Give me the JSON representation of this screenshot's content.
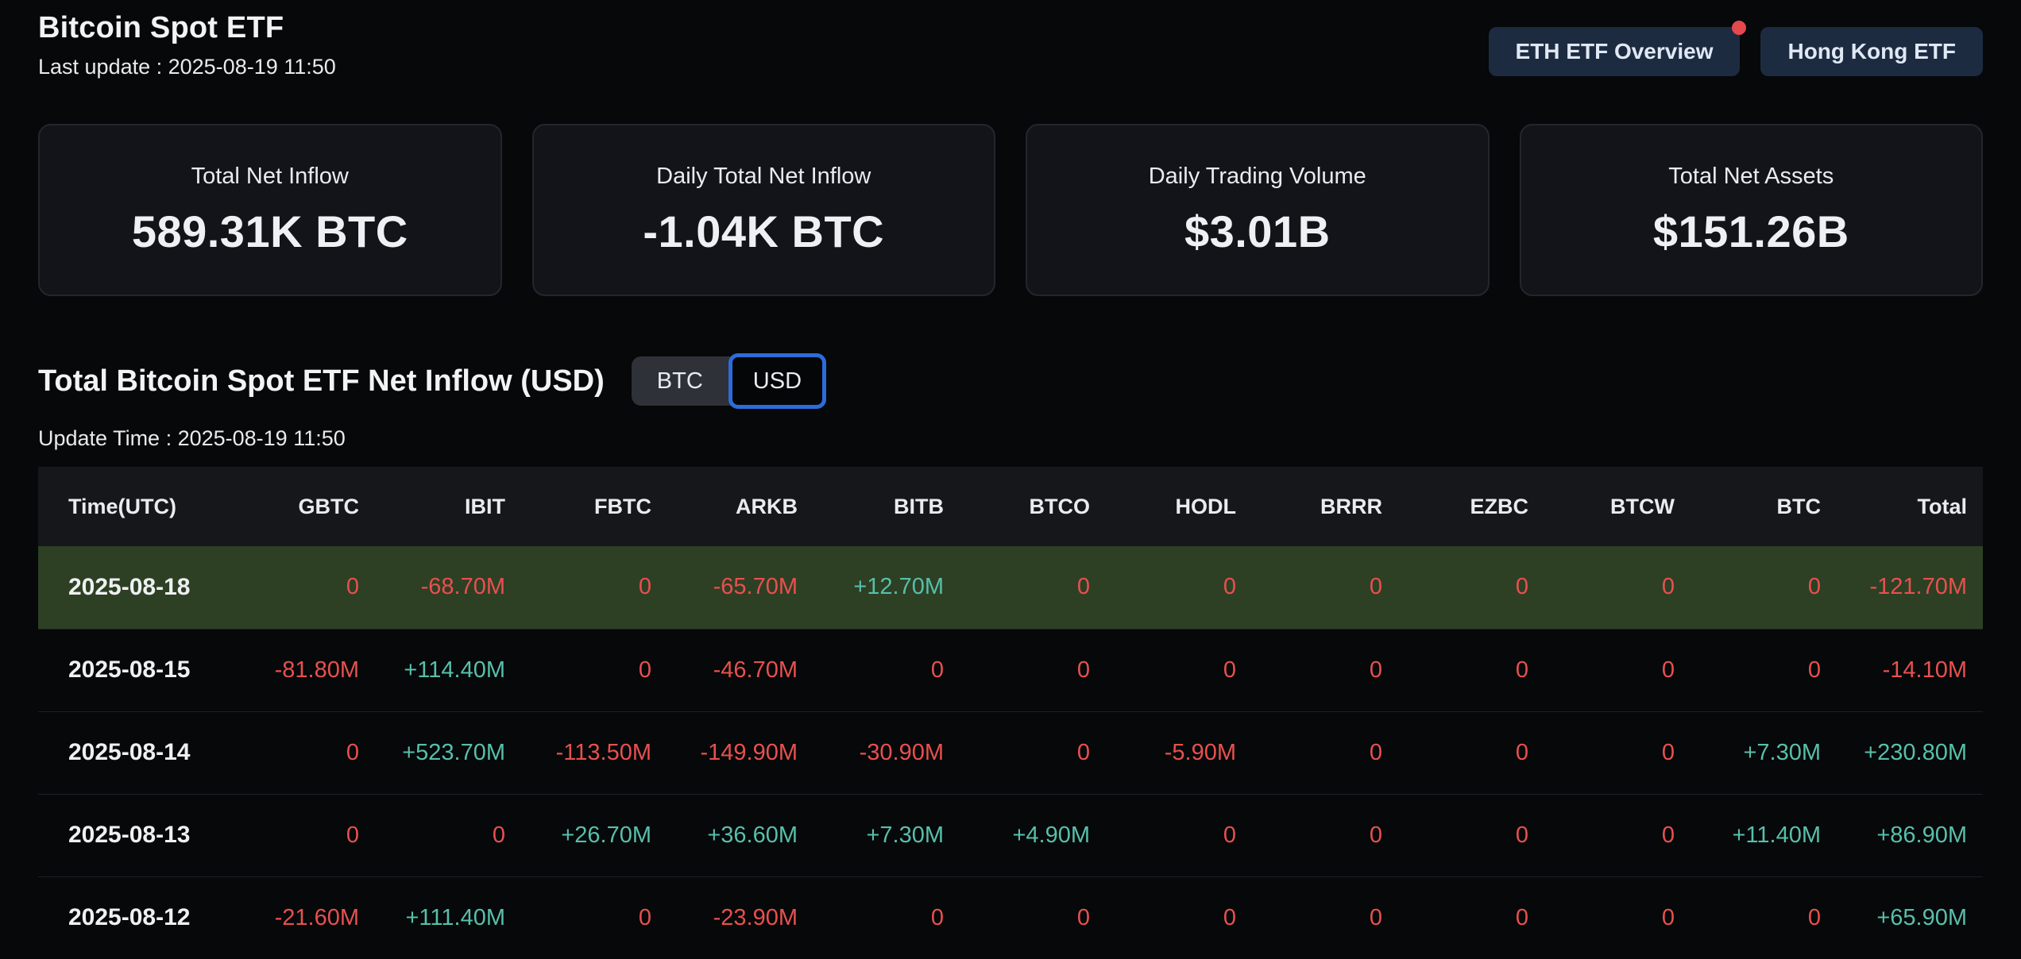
{
  "header": {
    "title": "Bitcoin Spot ETF",
    "last_update": "Last update : 2025-08-19 11:50",
    "buttons": [
      {
        "label": "ETH ETF Overview",
        "has_notification_dot": true
      },
      {
        "label": "Hong Kong ETF",
        "has_notification_dot": false
      }
    ]
  },
  "stats": [
    {
      "label": "Total Net Inflow",
      "value": "589.31K BTC"
    },
    {
      "label": "Daily Total Net Inflow",
      "value": "-1.04K BTC"
    },
    {
      "label": "Daily Trading Volume",
      "value": "$3.01B"
    },
    {
      "label": "Total Net Assets",
      "value": "$151.26B"
    }
  ],
  "inflow_section": {
    "title": "Total Bitcoin Spot ETF Net Inflow (USD)",
    "unit_toggle": {
      "options": [
        "BTC",
        "USD"
      ],
      "selected": "USD"
    },
    "update_time": "Update Time : 2025-08-19 11:50"
  },
  "table": {
    "columns": [
      "Time(UTC)",
      "GBTC",
      "IBIT",
      "FBTC",
      "ARKB",
      "BITB",
      "BTCO",
      "HODL",
      "BRRR",
      "EZBC",
      "BTCW",
      "BTC",
      "Total"
    ],
    "rows": [
      {
        "date": "2025-08-18",
        "highlighted": true,
        "values": [
          "0",
          "-68.70M",
          "0",
          "-65.70M",
          "+12.70M",
          "0",
          "0",
          "0",
          "0",
          "0",
          "0",
          "-121.70M"
        ]
      },
      {
        "date": "2025-08-15",
        "highlighted": false,
        "values": [
          "-81.80M",
          "+114.40M",
          "0",
          "-46.70M",
          "0",
          "0",
          "0",
          "0",
          "0",
          "0",
          "0",
          "-14.10M"
        ]
      },
      {
        "date": "2025-08-14",
        "highlighted": false,
        "values": [
          "0",
          "+523.70M",
          "-113.50M",
          "-149.90M",
          "-30.90M",
          "0",
          "-5.90M",
          "0",
          "0",
          "0",
          "+7.30M",
          "+230.80M"
        ]
      },
      {
        "date": "2025-08-13",
        "highlighted": false,
        "values": [
          "0",
          "0",
          "+26.70M",
          "+36.60M",
          "+7.30M",
          "+4.90M",
          "0",
          "0",
          "0",
          "0",
          "+11.40M",
          "+86.90M"
        ]
      },
      {
        "date": "2025-08-12",
        "highlighted": false,
        "values": [
          "-21.60M",
          "+111.40M",
          "0",
          "-23.90M",
          "0",
          "0",
          "0",
          "0",
          "0",
          "0",
          "0",
          "+65.90M"
        ]
      }
    ]
  },
  "colors": {
    "positive": "#58bfac",
    "negative": "#e8504f",
    "highlight_row_bg": "#2d4024",
    "accent_blue": "#2c6cdb",
    "notification_dot": "#e5484d"
  }
}
